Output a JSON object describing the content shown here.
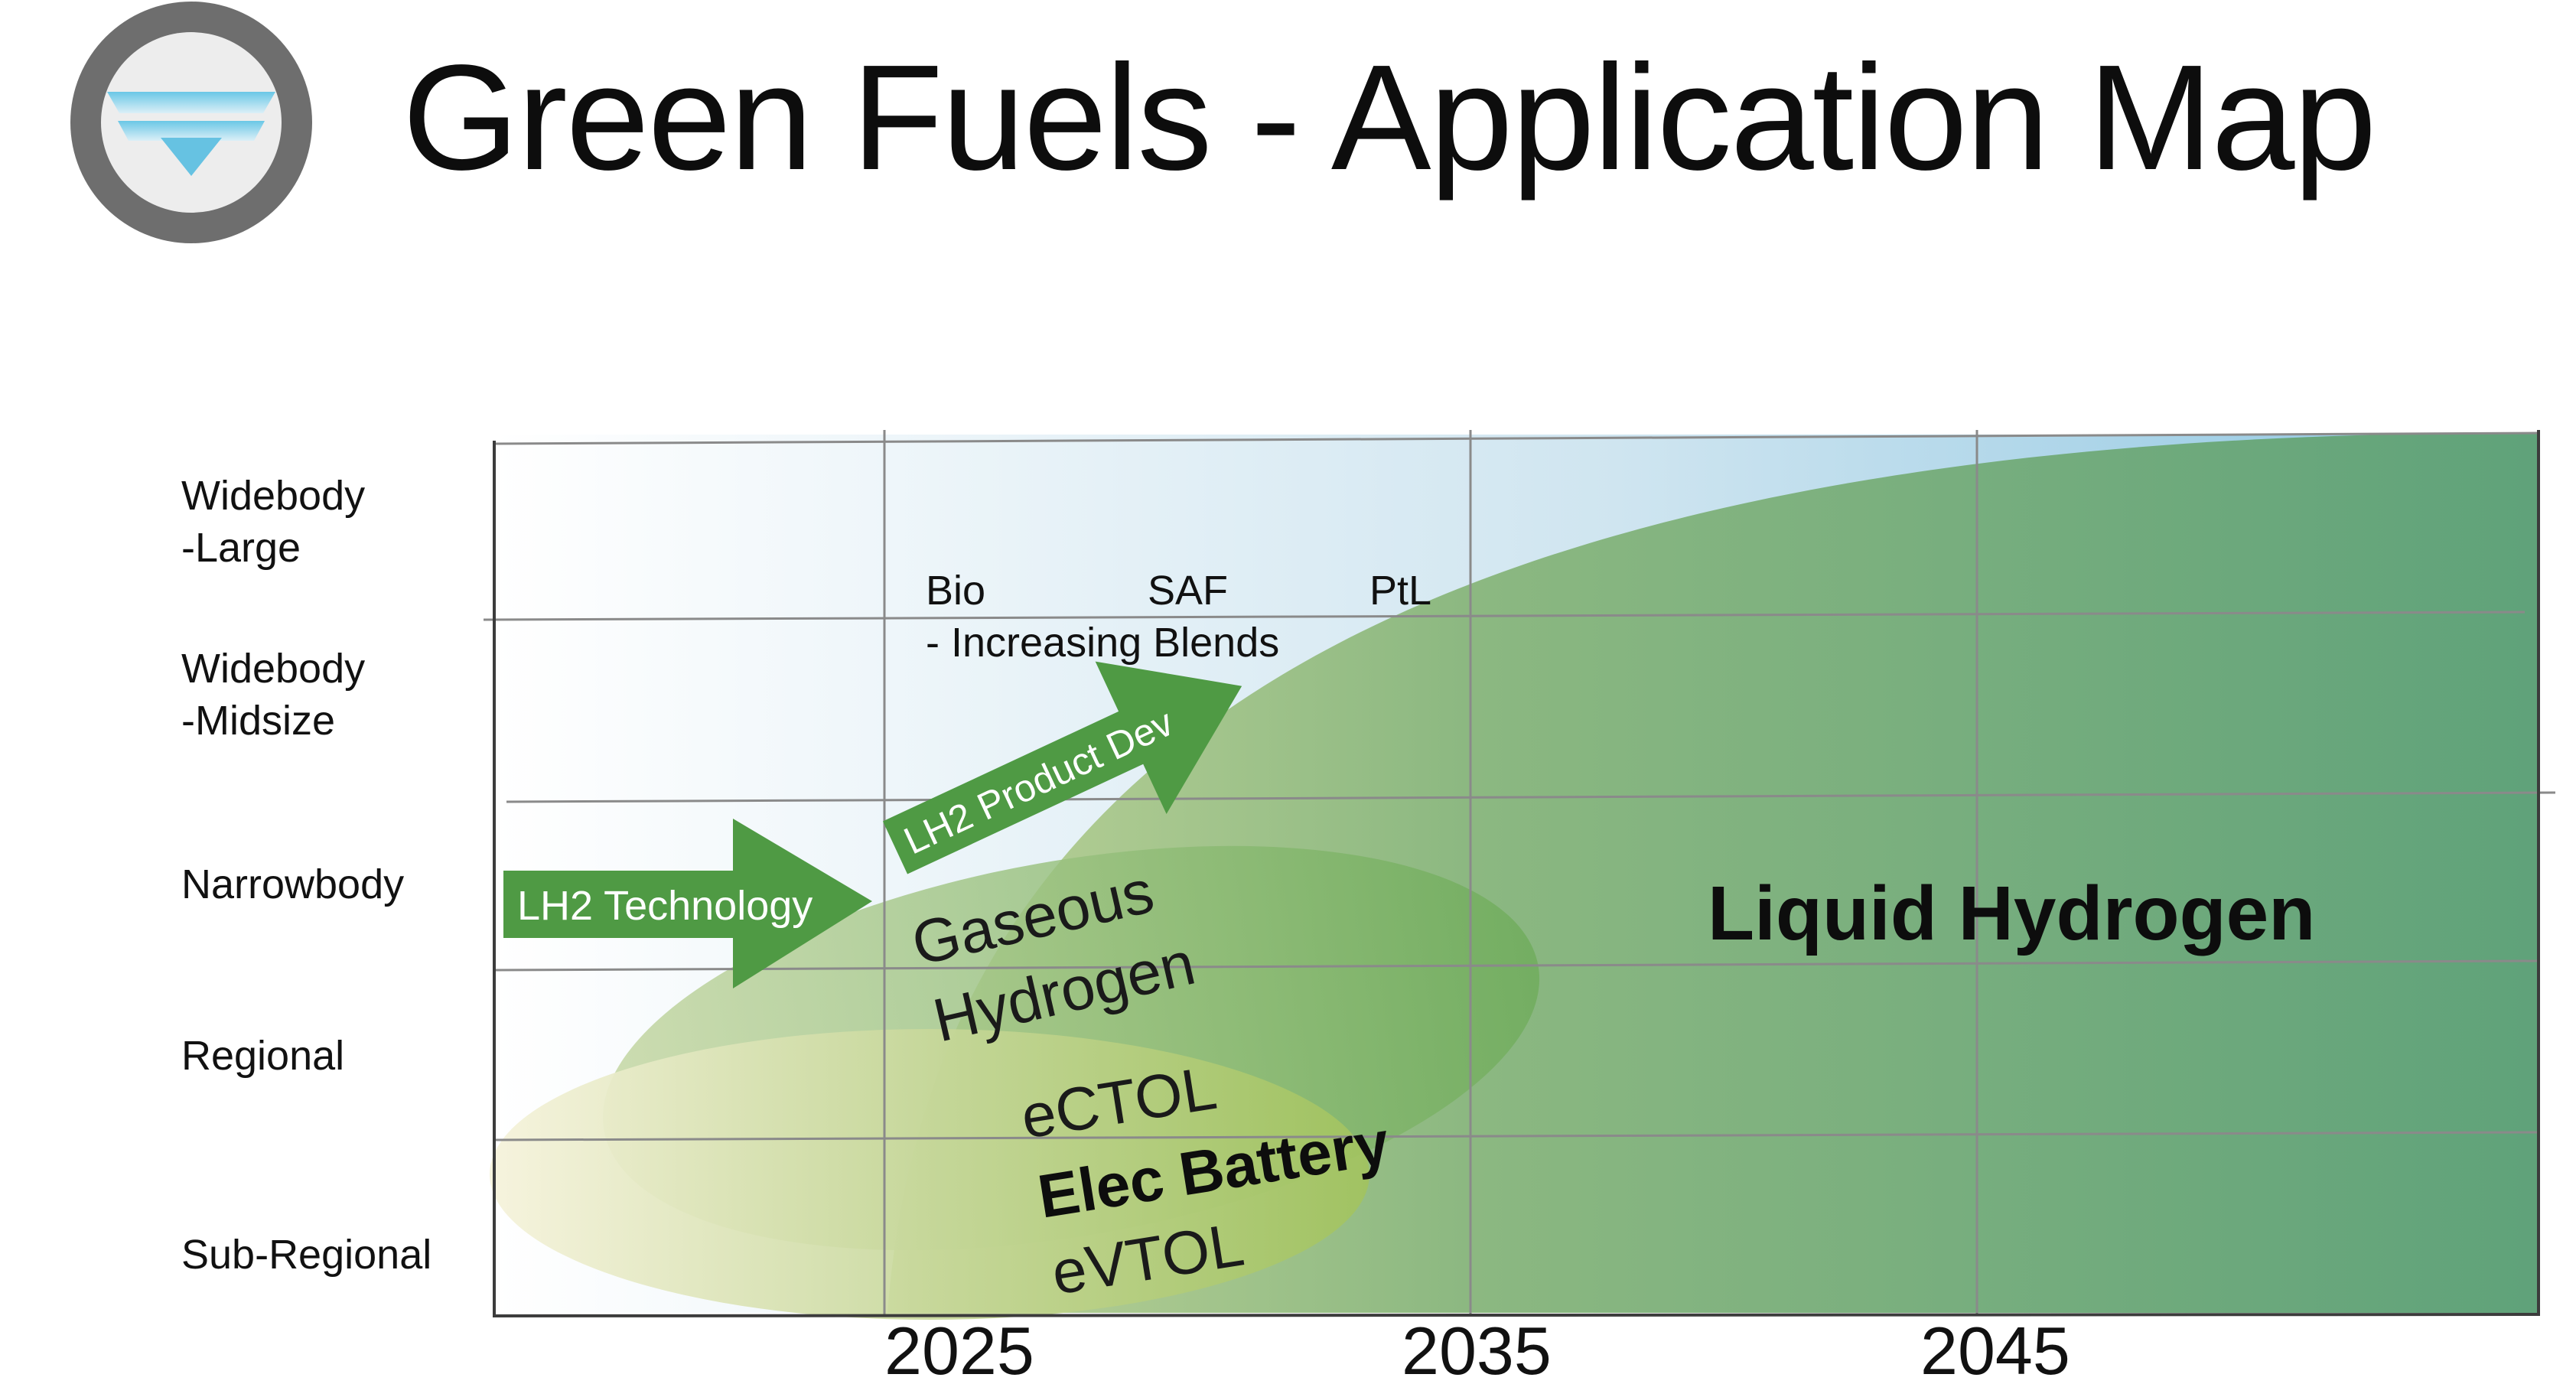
{
  "header": {
    "title": "Green Fuels - Application Map",
    "logo_icon": "chevron-emblem-icon"
  },
  "chart": {
    "type": "application-map",
    "y_categories": [
      [
        "Widebody",
        "-Large"
      ],
      [
        "Widebody",
        "-Midsize"
      ],
      [
        "Narrowbody"
      ],
      [
        "Regional"
      ],
      [
        "Sub-Regional"
      ]
    ],
    "x_ticks": [
      "2025",
      "2035",
      "2045"
    ],
    "saf_labels": {
      "bio": "Bio",
      "saf": "SAF",
      "ptl": "PtL",
      "blends": "- Increasing Blends"
    },
    "arrows": {
      "lh2_technology": "LH2 Technology",
      "lh2_product_dev": "LH2 Product Dev"
    },
    "regions": {
      "liquid_hydrogen": "Liquid Hydrogen",
      "gaseous_hydrogen": [
        "Gaseous",
        "Hydrogen"
      ],
      "ectol": "eCTOL",
      "elec_battery": "Elec Battery",
      "evtol": "eVTOL"
    },
    "colors": {
      "liquid_hydrogen": "#5fa06b",
      "gaseous_hydrogen": "#7ab268",
      "elec_battery": "#a8c868",
      "arrow_green": "#4f9a44",
      "saf_sky": "#9ccbe2",
      "grid": "#8a8a8a"
    }
  }
}
